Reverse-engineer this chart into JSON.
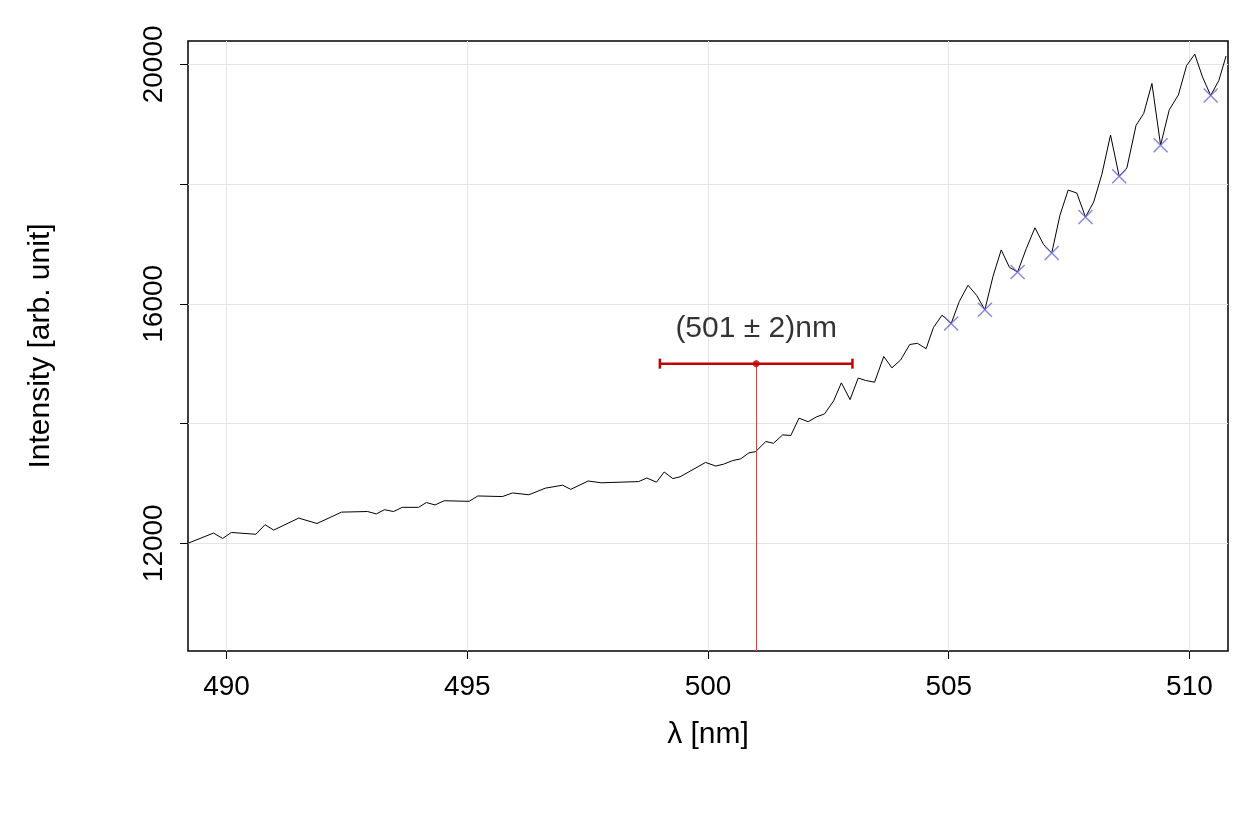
{
  "chart_data": {
    "type": "line",
    "xlabel": "λ [nm]",
    "ylabel": "Intensity [arb. unit]",
    "xlim": [
      489.2,
      510.8
    ],
    "ylim": [
      10200,
      20390
    ],
    "xticks": [
      490,
      495,
      500,
      505,
      510
    ],
    "yticks": [
      12000,
      {
        "value": 14000,
        "label": null
      },
      16000,
      {
        "value": 18000,
        "label": null
      },
      20000
    ],
    "grid": true,
    "legend": false,
    "series": [
      {
        "color": "#000000",
        "marker": "none",
        "x": [
          489.2,
          489.73,
          489.92,
          490.1,
          490.61,
          490.8,
          490.98,
          491.5,
          491.88,
          492.39,
          492.93,
          493.11,
          493.28,
          493.47,
          493.65,
          493.99,
          494.15,
          494.33,
          494.52,
          495.04,
          495.22,
          495.73,
          495.94,
          496.28,
          496.62,
          496.98,
          497.15,
          497.51,
          497.78,
          498.56,
          498.73,
          498.93,
          499.09,
          499.27,
          499.42,
          499.95,
          500.16,
          500.32,
          500.51,
          500.68,
          500.85,
          500.99,
          501.2,
          501.36,
          501.55,
          501.72,
          501.89,
          502.08,
          502.25,
          502.42,
          502.61,
          502.77,
          502.95,
          503.12,
          503.27,
          503.46,
          503.65,
          503.82,
          504.0,
          504.19,
          504.35,
          504.53,
          504.68,
          504.86,
          505.05,
          505.22,
          505.4,
          505.58,
          505.75,
          505.92,
          506.09,
          506.26,
          506.43,
          506.61,
          506.79,
          506.97,
          507.14,
          507.31,
          507.48,
          507.66,
          507.84,
          508.01,
          508.18,
          508.36,
          508.54,
          508.7,
          508.89,
          509.05,
          509.22,
          509.4,
          509.58,
          509.77,
          509.94,
          510.11,
          510.27,
          510.44,
          510.61,
          510.76
        ],
        "values": [
          12000,
          12170,
          12080,
          12180,
          12150,
          12310,
          12220,
          12420,
          12330,
          12520,
          12530,
          12490,
          12560,
          12530,
          12600,
          12600,
          12680,
          12640,
          12710,
          12700,
          12790,
          12780,
          12840,
          12810,
          12920,
          12970,
          12900,
          13040,
          13010,
          13030,
          13090,
          13020,
          13190,
          13080,
          13110,
          13350,
          13290,
          13320,
          13380,
          13410,
          13510,
          13530,
          13700,
          13670,
          13810,
          13800,
          14090,
          14030,
          14110,
          14160,
          14380,
          14680,
          14400,
          14760,
          14720,
          14690,
          15120,
          14930,
          15060,
          15320,
          15340,
          15250,
          15600,
          15810,
          15670,
          16040,
          16310,
          16140,
          15900,
          16460,
          16900,
          16610,
          16530,
          16920,
          17270,
          16990,
          16850,
          17480,
          17900,
          17850,
          17450,
          17700,
          18160,
          18820,
          18130,
          18270,
          18980,
          19180,
          19680,
          18650,
          19240,
          19490,
          19980,
          20170,
          19790,
          19480,
          19730,
          20140
        ]
      },
      {
        "type": "scatter",
        "color": "#6b6bd6",
        "marker": "cross",
        "x": [
          505.05,
          505.75,
          506.43,
          507.14,
          507.84,
          508.54,
          509.4,
          510.44
        ],
        "values": [
          15670,
          15900,
          16530,
          16850,
          17450,
          18130,
          18650,
          19480
        ]
      },
      {
        "type": "scatter",
        "color": "#c00000",
        "marker": "circle",
        "x": [
          501
        ],
        "values": [
          15000
        ],
        "xerrors": [
          2
        ]
      }
    ],
    "ref_lines": [
      {
        "axis": "x",
        "value": 501,
        "color": "#cc4444"
      }
    ],
    "annotations": [
      "(501 ± 2)nm"
    ]
  }
}
